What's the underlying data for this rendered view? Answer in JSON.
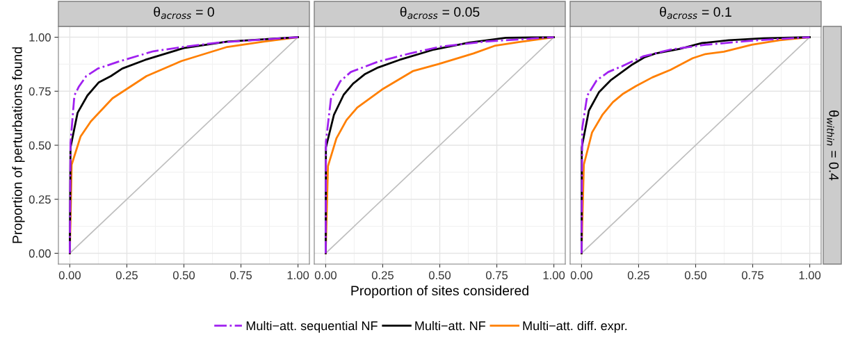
{
  "chart_data": [
    {
      "type": "line",
      "title": "θ$_{across}$ = 0",
      "ylabel": "Proportion of perturbations found",
      "xlim": [
        -0.05,
        1.05
      ],
      "ylim": [
        -0.05,
        1.05
      ],
      "xticks": [
        {
          "value": 0,
          "label": "0.00"
        },
        {
          "value": 0.25,
          "label": "0.25"
        },
        {
          "value": 0.5,
          "label": "0.50"
        },
        {
          "value": 0.75,
          "label": "0.75"
        },
        {
          "value": 1,
          "label": "1.00"
        }
      ],
      "yticks": [
        {
          "value": 0,
          "label": "0.00"
        },
        {
          "value": 0.25,
          "label": "0.25"
        },
        {
          "value": 0.5,
          "label": "0.50"
        },
        {
          "value": 0.75,
          "label": "0.75"
        },
        {
          "value": 1,
          "label": "1.00"
        }
      ],
      "grid": true,
      "legend": "bottom",
      "series": [
        {
          "color": "#bebebe",
          "x": [
            0,
            1
          ],
          "values": [
            0,
            1
          ]
        },
        {
          "name": "Multi−att. diff. expr.",
          "color": "#ff7f00",
          "line_style": "solid",
          "x": [
            0,
            0.008,
            0.047,
            0.092,
            0.187,
            0.336,
            0.49,
            0.69,
            0.85,
            1
          ],
          "values": [
            0,
            0.41,
            0.54,
            0.61,
            0.717,
            0.82,
            0.89,
            0.955,
            0.98,
            1
          ]
        },
        {
          "name": "Multi−att. NF",
          "color": "#000000",
          "line_style": "solid",
          "x": [
            0,
            0.003,
            0.034,
            0.077,
            0.126,
            0.18,
            0.23,
            0.33,
            0.5,
            0.69,
            1
          ],
          "values": [
            0,
            0.49,
            0.65,
            0.73,
            0.79,
            0.82,
            0.855,
            0.895,
            0.95,
            0.98,
            1
          ]
        },
        {
          "name": "Multi−att. sequential NF",
          "color": "#a020f0",
          "line_style": "dashdot",
          "x": [
            0,
            0.003,
            0.02,
            0.039,
            0.072,
            0.123,
            0.214,
            0.366,
            0.51,
            0.65,
            1
          ],
          "values": [
            0,
            0.51,
            0.73,
            0.77,
            0.82,
            0.855,
            0.887,
            0.935,
            0.957,
            0.975,
            1
          ]
        }
      ]
    },
    {
      "type": "line",
      "title": "θ$_{across}$ = 0.05",
      "xlabel": "Proportion of sites considered",
      "xlim": [
        -0.05,
        1.05
      ],
      "ylim": [
        -0.05,
        1.05
      ],
      "tick_labels": "x",
      "xticks": [
        {
          "value": 0,
          "label": "0.00"
        },
        {
          "value": 0.25,
          "label": "0.25"
        },
        {
          "value": 0.5,
          "label": "0.50"
        },
        {
          "value": 0.75,
          "label": "0.75"
        },
        {
          "value": 1,
          "label": "1.00"
        }
      ],
      "yticks": [
        {
          "value": 0,
          "label": "0.00"
        },
        {
          "value": 0.25,
          "label": "0.25"
        },
        {
          "value": 0.5,
          "label": "0.50"
        },
        {
          "value": 0.75,
          "label": "0.75"
        },
        {
          "value": 1,
          "label": "1.00"
        }
      ],
      "grid": true,
      "legend": "bottom",
      "series": [
        {
          "color": "#bebebe",
          "x": [
            0,
            1
          ],
          "values": [
            0,
            1
          ]
        },
        {
          "name": "Multi−att. diff. expr.",
          "color": "#ff7f00",
          "line_style": "solid",
          "x": [
            0,
            0.01,
            0.047,
            0.091,
            0.138,
            0.247,
            0.384,
            0.495,
            0.648,
            0.74,
            0.85,
            1
          ],
          "values": [
            0,
            0.403,
            0.532,
            0.616,
            0.674,
            0.758,
            0.844,
            0.876,
            0.925,
            0.96,
            0.978,
            1
          ]
        },
        {
          "name": "Multi−att. NF",
          "color": "#000000",
          "line_style": "solid",
          "x": [
            0,
            0.001,
            0.036,
            0.079,
            0.12,
            0.173,
            0.23,
            0.323,
            0.475,
            0.627,
            0.79,
            1
          ],
          "values": [
            0,
            0.49,
            0.64,
            0.734,
            0.785,
            0.83,
            0.86,
            0.895,
            0.943,
            0.975,
            0.997,
            1
          ]
        },
        {
          "name": "Multi−att. sequential NF",
          "color": "#a020f0",
          "line_style": "dashdot",
          "x": [
            0,
            0.001,
            0.023,
            0.064,
            0.11,
            0.23,
            0.37,
            0.506,
            0.7,
            1
          ],
          "values": [
            0,
            0.516,
            0.715,
            0.796,
            0.839,
            0.887,
            0.925,
            0.957,
            0.98,
            1
          ]
        }
      ]
    },
    {
      "type": "line",
      "title": "θ$_{across}$ = 0.1",
      "annotations": [
        "θ$_{within}$ = 0.4"
      ],
      "xlim": [
        -0.05,
        1.05
      ],
      "ylim": [
        -0.05,
        1.05
      ],
      "tick_labels": "x",
      "xticks": [
        {
          "value": 0,
          "label": "0.00"
        },
        {
          "value": 0.25,
          "label": "0.25"
        },
        {
          "value": 0.5,
          "label": "0.50"
        },
        {
          "value": 0.75,
          "label": "0.75"
        },
        {
          "value": 1,
          "label": "1.00"
        }
      ],
      "yticks": [
        {
          "value": 0,
          "label": "0.00"
        },
        {
          "value": 0.25,
          "label": "0.25"
        },
        {
          "value": 0.5,
          "label": "0.50"
        },
        {
          "value": 0.75,
          "label": "0.75"
        },
        {
          "value": 1,
          "label": "1.00"
        }
      ],
      "grid": true,
      "legend": "bottom",
      "series": [
        {
          "color": "#bebebe",
          "x": [
            0,
            1
          ],
          "values": [
            0,
            1
          ]
        },
        {
          "name": "Multi−att. diff. expr.",
          "color": "#ff7f00",
          "line_style": "solid",
          "x": [
            0,
            0.01,
            0.046,
            0.091,
            0.137,
            0.183,
            0.239,
            0.31,
            0.39,
            0.487,
            0.543,
            0.624,
            0.746,
            0.868,
            1
          ],
          "values": [
            0,
            0.41,
            0.559,
            0.64,
            0.699,
            0.739,
            0.774,
            0.814,
            0.849,
            0.903,
            0.922,
            0.933,
            0.965,
            0.986,
            1
          ]
        },
        {
          "name": "Multi−att. NF",
          "color": "#000000",
          "line_style": "solid",
          "x": [
            0,
            0.001,
            0.032,
            0.076,
            0.127,
            0.223,
            0.274,
            0.325,
            0.43,
            0.528,
            0.645,
            0.797,
            1
          ],
          "values": [
            0,
            0.49,
            0.66,
            0.745,
            0.8,
            0.874,
            0.906,
            0.925,
            0.946,
            0.973,
            0.986,
            0.995,
            1
          ]
        },
        {
          "name": "Multi−att. sequential NF",
          "color": "#a020f0",
          "line_style": "dashdot",
          "x": [
            0,
            0.003,
            0.025,
            0.066,
            0.117,
            0.178,
            0.269,
            0.391,
            0.543,
            0.746,
            1
          ],
          "values": [
            0,
            0.58,
            0.73,
            0.8,
            0.839,
            0.866,
            0.911,
            0.943,
            0.965,
            0.984,
            1
          ]
        }
      ]
    }
  ]
}
